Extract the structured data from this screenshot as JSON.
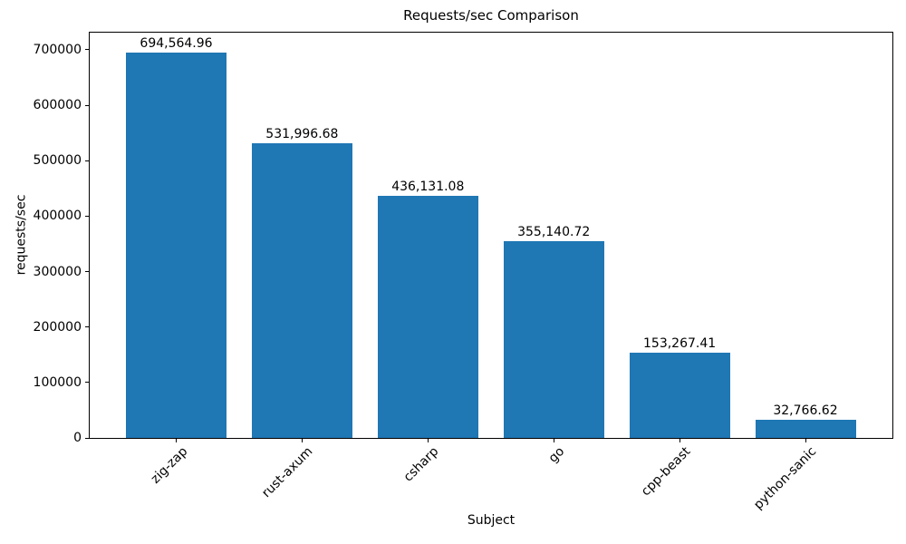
{
  "chart_data": {
    "type": "bar",
    "title": "Requests/sec Comparison",
    "xlabel": "Subject",
    "ylabel": "requests/sec",
    "categories": [
      "zig-zap",
      "rust-axum",
      "csharp",
      "go",
      "cpp-beast",
      "python-sanic"
    ],
    "values": [
      694564.96,
      531996.68,
      436131.08,
      355140.72,
      153267.41,
      32766.62
    ],
    "value_labels": [
      "694,564.96",
      "531,996.68",
      "436,131.08",
      "355,140.72",
      "153,267.41",
      "32,766.62"
    ],
    "bar_color": "#1f77b4",
    "text_color": "#000000",
    "ylim": [
      0,
      732700
    ],
    "yticks": [
      0,
      100000,
      200000,
      300000,
      400000,
      500000,
      600000,
      700000
    ],
    "ytick_labels": [
      "0",
      "100000",
      "200000",
      "300000",
      "400000",
      "500000",
      "600000",
      "700000"
    ],
    "x_tick_rotation": 45,
    "grid": false,
    "legend": null
  }
}
